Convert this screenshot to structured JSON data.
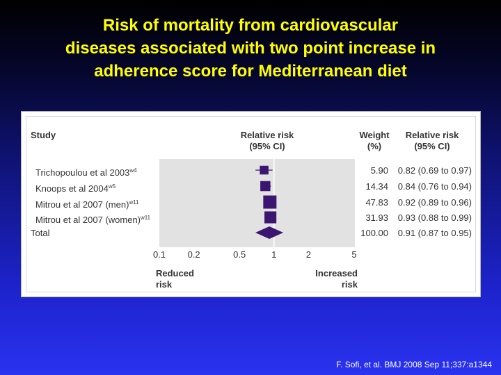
{
  "slide": {
    "title_lines": [
      "Risk of mortality from cardiovascular",
      "diseases associated with two point increase in",
      "adherence score for Mediterranean diet"
    ],
    "citation": "F. Sofi, et al. BMJ 2008 Sep 11;337:a1344"
  },
  "headers": {
    "study": "Study",
    "rr_plot_line1": "Relative risk",
    "rr_plot_line2": "(95% CI)",
    "weight_line1": "Weight",
    "weight_line2": "(%)",
    "rr_line1": "Relative risk",
    "rr_line2": "(95% CI)"
  },
  "bottom_labels": {
    "reduced_line1": "Reduced",
    "reduced_line2": "risk",
    "increased_line1": "Increased",
    "increased_line2": "risk"
  },
  "chart_data": {
    "type": "forest",
    "x_scale": "log",
    "xlim": [
      0.1,
      5
    ],
    "xticks": [
      "0.1",
      "0.2",
      "0.5",
      "1",
      "2",
      "5"
    ],
    "reference_line": 1,
    "studies": [
      {
        "name": "Trichopoulou et al 2003",
        "sup": "w4",
        "weight": "5.90",
        "rr": 0.82,
        "lo": 0.69,
        "hi": 0.97,
        "rr_text": "0.82 (0.69 to 0.97)"
      },
      {
        "name": "Knoops et al 2004",
        "sup": "w5",
        "weight": "14.34",
        "rr": 0.84,
        "lo": 0.76,
        "hi": 0.94,
        "rr_text": "0.84 (0.76 to 0.94)"
      },
      {
        "name": "Mitrou et al 2007 (men)",
        "sup": "w11",
        "weight": "47.83",
        "rr": 0.92,
        "lo": 0.89,
        "hi": 0.96,
        "rr_text": "0.92 (0.89 to 0.96)"
      },
      {
        "name": "Mitrou et al 2007 (women)",
        "sup": "w11",
        "weight": "31.93",
        "rr": 0.93,
        "lo": 0.88,
        "hi": 0.99,
        "rr_text": "0.93 (0.88 to 0.99)"
      }
    ],
    "total": {
      "name": "Total",
      "weight": "100.00",
      "rr": 0.91,
      "lo": 0.87,
      "hi": 0.95,
      "rr_text": "0.91 (0.87 to 0.95)"
    },
    "colors": {
      "marker": "#3a1670",
      "ref_line": "#ffffff",
      "plot_bg": "#e2e2e2"
    }
  }
}
